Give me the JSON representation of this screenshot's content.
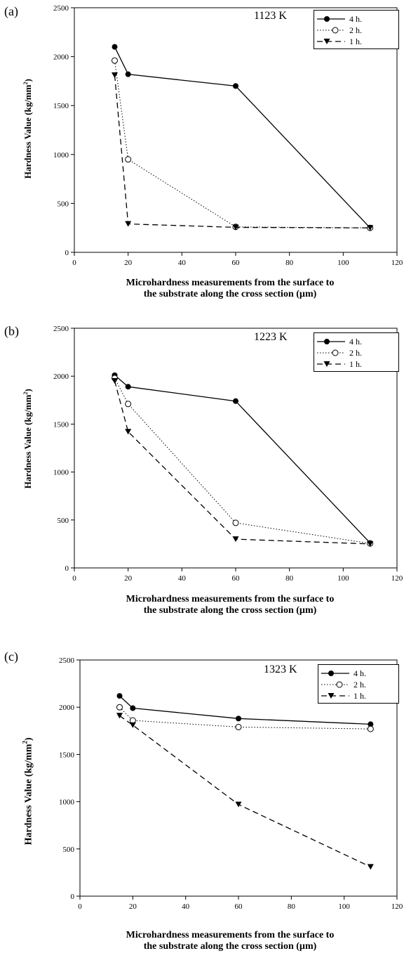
{
  "chart_data": [
    {
      "panel": "(a)",
      "type": "line",
      "annotation": "1123 K",
      "xlabel_lines": [
        "Microhardness measurements from the surface to",
        "the substrate along the cross section (µm)"
      ],
      "ylabel": "Hardness Value (kg/mm",
      "ylabel_sup": "2",
      "ylabel_close": ")",
      "xlim": [
        0,
        120
      ],
      "ylim": [
        0,
        2500
      ],
      "xticks": [
        0,
        20,
        40,
        60,
        80,
        100,
        120
      ],
      "yticks": [
        0,
        500,
        1000,
        1500,
        2000,
        2500
      ],
      "grid": false,
      "legend_position": "top-right",
      "series": [
        {
          "name": "4 h.",
          "x": [
            15,
            20,
            60,
            110
          ],
          "y": [
            2100,
            1820,
            1700,
            250
          ],
          "marker": "filled-circle",
          "line": "solid"
        },
        {
          "name": "2 h.",
          "x": [
            15,
            20,
            60,
            110
          ],
          "y": [
            1960,
            950,
            260,
            250
          ],
          "marker": "open-circle",
          "line": "dotted"
        },
        {
          "name": "1 h.",
          "x": [
            15,
            20,
            60,
            110
          ],
          "y": [
            1810,
            290,
            255,
            250
          ],
          "marker": "filled-triangle-down",
          "line": "dashed"
        }
      ]
    },
    {
      "panel": "(b)",
      "type": "line",
      "annotation": "1223 K",
      "xlabel_lines": [
        "Microhardness measurements from the surface to",
        "the substrate along the cross section (µm)"
      ],
      "ylabel": "Hardness Value (kg/mm",
      "ylabel_sup": "2",
      "ylabel_close": ")",
      "xlim": [
        0,
        120
      ],
      "ylim": [
        0,
        2500
      ],
      "xticks": [
        0,
        20,
        40,
        60,
        80,
        100,
        120
      ],
      "yticks": [
        0,
        500,
        1000,
        1500,
        2000,
        2500
      ],
      "grid": false,
      "legend_position": "top-right",
      "series": [
        {
          "name": "4 h.",
          "x": [
            15,
            20,
            60,
            110
          ],
          "y": [
            2010,
            1890,
            1740,
            260
          ],
          "marker": "filled-circle",
          "line": "solid"
        },
        {
          "name": "2 h.",
          "x": [
            15,
            20,
            60,
            110
          ],
          "y": [
            1980,
            1710,
            470,
            255
          ],
          "marker": "open-circle",
          "line": "dotted"
        },
        {
          "name": "1 h.",
          "x": [
            15,
            20,
            60,
            110
          ],
          "y": [
            1950,
            1420,
            300,
            250
          ],
          "marker": "filled-triangle-down",
          "line": "dashed"
        }
      ]
    },
    {
      "panel": "(c)",
      "type": "line",
      "annotation": "1323 K",
      "xlabel_lines": [
        "Microhardness measurements from the surface to",
        "the substrate along the cross section (µm)"
      ],
      "ylabel": "Hardness Value (kg/mm",
      "ylabel_sup": "2",
      "ylabel_close": ")",
      "xlim": [
        0,
        120
      ],
      "ylim": [
        0,
        2500
      ],
      "xticks": [
        0,
        20,
        40,
        60,
        80,
        100,
        120
      ],
      "yticks": [
        0,
        500,
        1000,
        1500,
        2000,
        2500
      ],
      "grid": false,
      "legend_position": "top-right",
      "series": [
        {
          "name": "4 h.",
          "x": [
            15,
            20,
            60,
            110
          ],
          "y": [
            2120,
            1990,
            1880,
            1820
          ],
          "marker": "filled-circle",
          "line": "solid"
        },
        {
          "name": "2 h.",
          "x": [
            15,
            20,
            60,
            110
          ],
          "y": [
            2000,
            1860,
            1790,
            1770
          ],
          "marker": "open-circle",
          "line": "dotted"
        },
        {
          "name": "1 h.",
          "x": [
            15,
            20,
            60,
            110
          ],
          "y": [
            1910,
            1810,
            970,
            310
          ],
          "marker": "filled-triangle-down",
          "line": "dashed"
        }
      ]
    }
  ]
}
